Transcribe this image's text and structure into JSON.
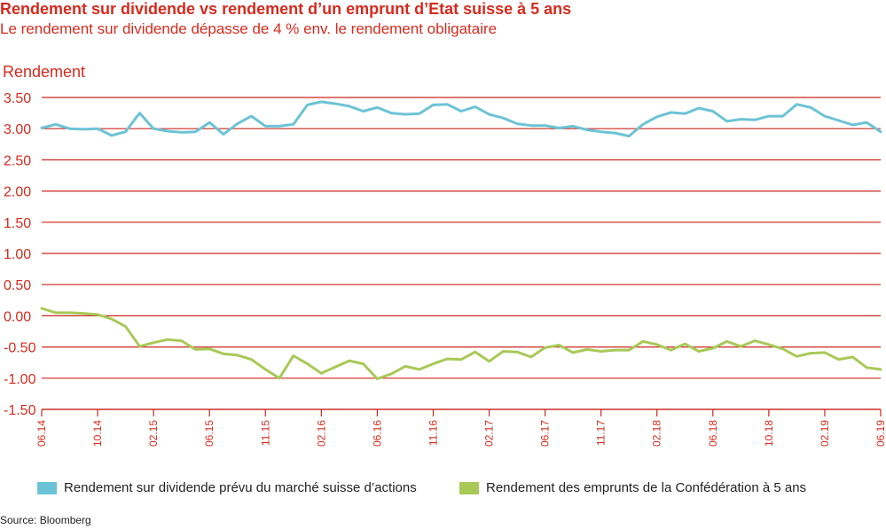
{
  "chart_data": {
    "type": "line",
    "title": "Rendement sur dividende vs rendement d’un emprunt d’Etat suisse à 5 ans",
    "subtitle": "Le rendement sur dividende dépasse de 4 % env. le rendement obligataire",
    "ylabel": "Rendement",
    "ylim": [
      -1.5,
      3.75
    ],
    "y_ticks": [
      "3.50",
      "3.00",
      "2.50",
      "2.00",
      "1.50",
      "1.00",
      "0.50",
      "0.00",
      "-0.50",
      "-1.00",
      "-1.50"
    ],
    "x_ticks": [
      "06.14",
      "10.14",
      "02.15",
      "06.15",
      "11.15",
      "02.16",
      "06.16",
      "11.16",
      "02.17",
      "06.17",
      "11.17",
      "02.18",
      "06.18",
      "10.18",
      "02.19",
      "06.19"
    ],
    "grid": "horizontal",
    "legend_position": "bottom",
    "series": [
      {
        "name": "Rendement sur dividende prévu du marché suisse d’actions",
        "color": "#6cc3d5",
        "values": [
          3.01,
          3.07,
          3.0,
          2.99,
          3.0,
          2.89,
          2.95,
          3.25,
          3.0,
          2.96,
          2.94,
          2.95,
          3.1,
          2.91,
          3.08,
          3.2,
          3.04,
          3.04,
          3.07,
          3.38,
          3.43,
          3.4,
          3.36,
          3.28,
          3.34,
          3.25,
          3.23,
          3.24,
          3.38,
          3.39,
          3.28,
          3.35,
          3.23,
          3.17,
          3.08,
          3.05,
          3.05,
          3.01,
          3.04,
          2.98,
          2.95,
          2.93,
          2.88,
          3.07,
          3.19,
          3.26,
          3.24,
          3.33,
          3.28,
          3.12,
          3.15,
          3.14,
          3.2,
          3.2,
          3.39,
          3.34,
          3.2,
          3.13,
          3.06,
          3.1,
          2.95
        ]
      },
      {
        "name": "Rendement des emprunts de la Confédération à 5 ans",
        "color": "#a8c957",
        "values": [
          0.12,
          0.05,
          0.05,
          0.04,
          0.02,
          -0.05,
          -0.17,
          -0.49,
          -0.43,
          -0.38,
          -0.4,
          -0.54,
          -0.53,
          -0.61,
          -0.63,
          -0.7,
          -0.86,
          -1.0,
          -0.64,
          -0.77,
          -0.92,
          -0.82,
          -0.72,
          -0.77,
          -1.01,
          -0.93,
          -0.81,
          -0.86,
          -0.77,
          -0.69,
          -0.7,
          -0.58,
          -0.73,
          -0.57,
          -0.58,
          -0.66,
          -0.51,
          -0.47,
          -0.59,
          -0.54,
          -0.57,
          -0.55,
          -0.55,
          -0.41,
          -0.46,
          -0.55,
          -0.45,
          -0.57,
          -0.52,
          -0.41,
          -0.49,
          -0.4,
          -0.46,
          -0.53,
          -0.65,
          -0.6,
          -0.59,
          -0.7,
          -0.66,
          -0.83,
          -0.86
        ]
      }
    ]
  },
  "source": "Source: Bloomberg",
  "colors": {
    "accent": "#d52b1e",
    "grid": "#c8281e"
  }
}
